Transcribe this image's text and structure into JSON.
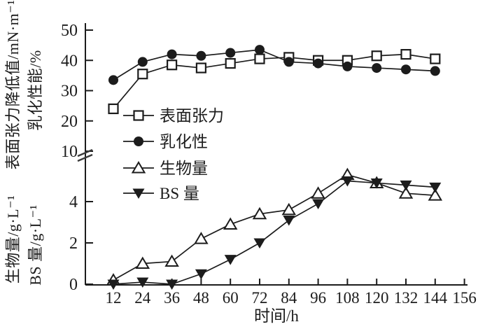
{
  "chart_data": {
    "type": "line",
    "title": "",
    "xlabel": "时间/h",
    "x": [
      12,
      24,
      36,
      48,
      60,
      72,
      84,
      96,
      108,
      120,
      132,
      144
    ],
    "x_tick_labels": [
      "12",
      "24",
      "36",
      "48",
      "60",
      "72",
      "84",
      "96",
      "108",
      "120",
      "132",
      "144",
      "156"
    ],
    "x_range": [
      12,
      156
    ],
    "ylabels": {
      "top_outer": "表面张力降低值/mN·m⁻¹",
      "top_inner": "乳化性能/%",
      "bottom_outer": "生物量/g·L⁻¹",
      "bottom_inner": "BS 量/g·L⁻¹"
    },
    "y_top_axis": {
      "ticks": [
        10,
        20,
        30,
        40,
        50
      ],
      "range": [
        10,
        50
      ]
    },
    "y_bottom_axis": {
      "ticks": [
        0,
        2,
        4
      ],
      "range": [
        0,
        6
      ]
    },
    "axis_break": true,
    "grid": false,
    "legend": {
      "position": "upper-left-inside"
    },
    "series": [
      {
        "key": "surface-tension",
        "name": "表面张力",
        "marker": "square-open",
        "axis": "top",
        "values": [
          24,
          35.5,
          38.5,
          37.5,
          39,
          40.5,
          41,
          40,
          40,
          41.5,
          42,
          40.5
        ]
      },
      {
        "key": "emulsification",
        "name": "乳化性",
        "marker": "circle-filled",
        "axis": "top",
        "values": [
          33.5,
          39.5,
          42,
          41.5,
          42.5,
          43.5,
          39.5,
          39,
          38,
          37.5,
          37,
          36.5
        ]
      },
      {
        "key": "biomass",
        "name": "生物量",
        "marker": "triangle-open",
        "axis": "bottom",
        "values": [
          0.2,
          1.0,
          1.1,
          2.2,
          2.9,
          3.4,
          3.6,
          4.4,
          5.3,
          4.9,
          4.4,
          4.3
        ]
      },
      {
        "key": "bs-amount",
        "name": "BS 量",
        "marker": "triangle-down-filled",
        "axis": "bottom",
        "values": [
          0,
          0.1,
          0,
          0.5,
          1.2,
          2.0,
          3.1,
          3.9,
          5.0,
          4.9,
          4.8,
          4.7
        ]
      }
    ],
    "color": "#1c1c1c",
    "background": "#ffffff"
  }
}
